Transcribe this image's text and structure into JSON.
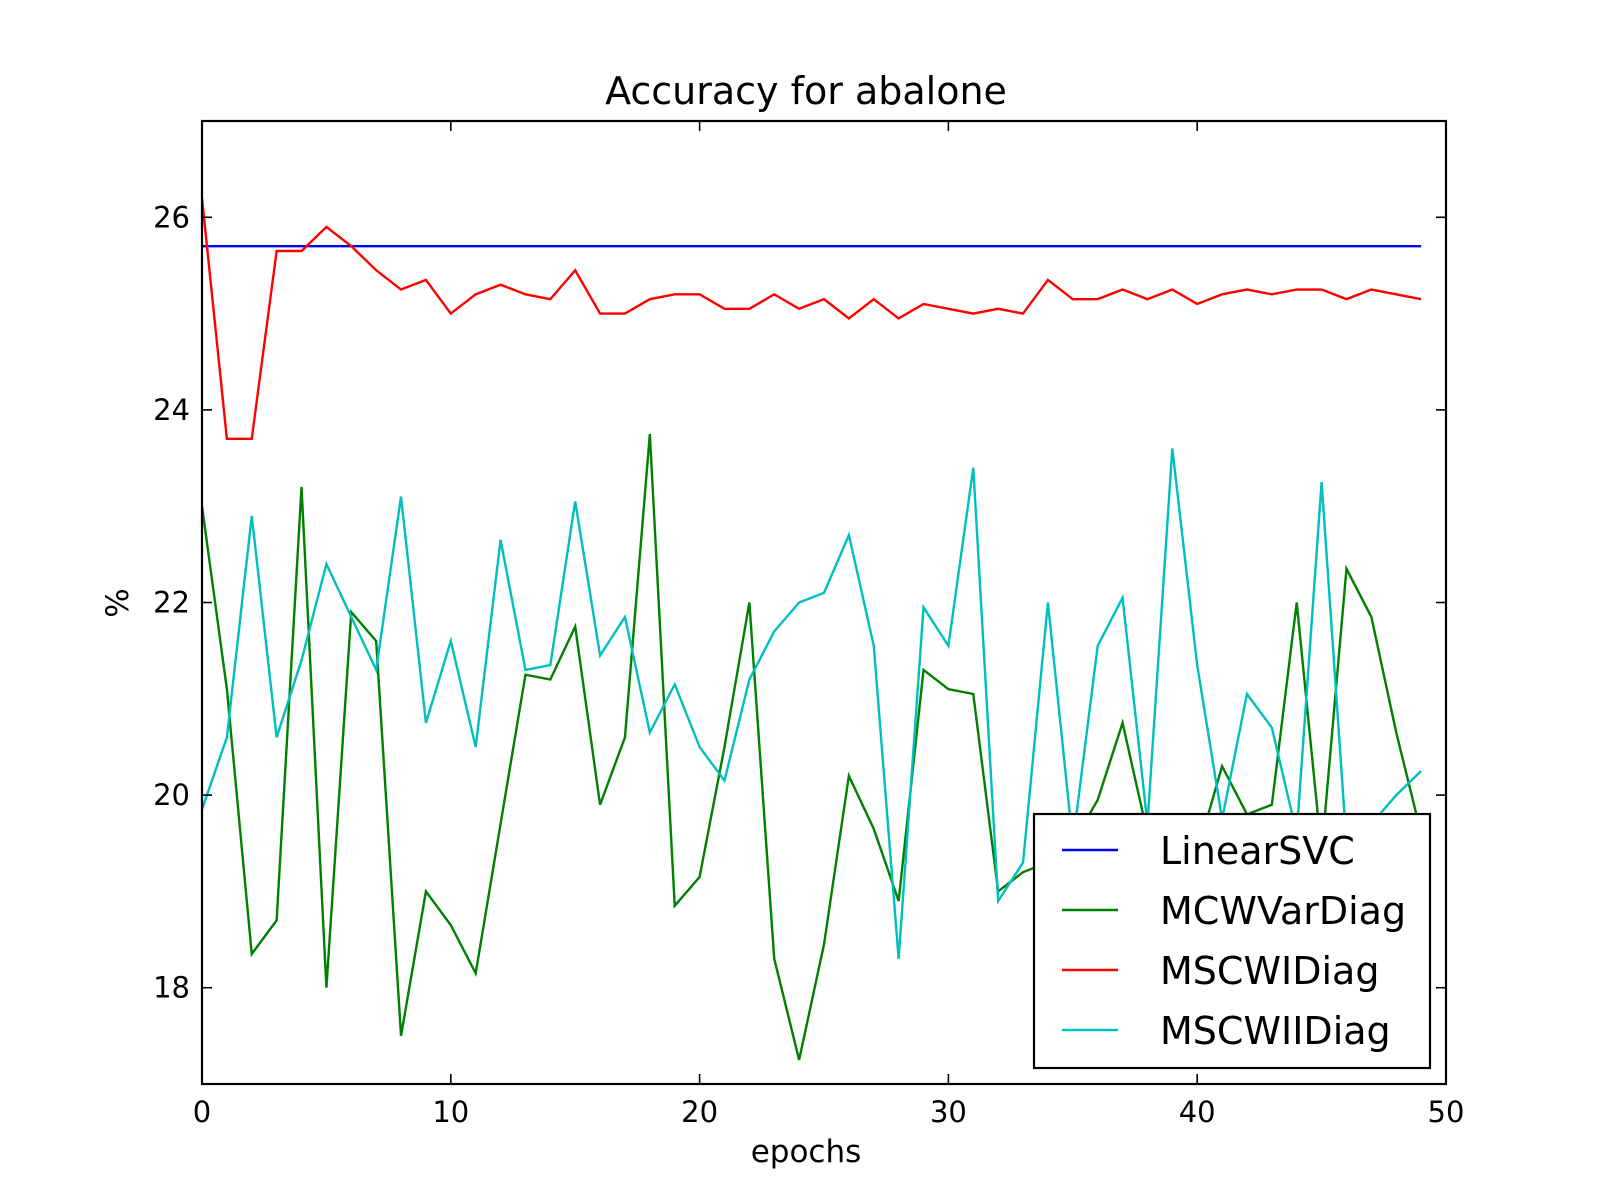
{
  "chart_data": {
    "type": "line",
    "title": "Accuracy for abalone",
    "xlabel": "epochs",
    "ylabel": "%",
    "xlim": [
      0,
      50
    ],
    "ylim": [
      17,
      27
    ],
    "xticks": [
      0,
      10,
      20,
      30,
      40,
      50
    ],
    "xtick_labels": [
      "0",
      "10",
      "20",
      "30",
      "40",
      "50"
    ],
    "yticks": [
      18,
      20,
      22,
      24,
      26
    ],
    "ytick_labels": [
      "18",
      "20",
      "22",
      "24",
      "26"
    ],
    "grid": false,
    "legend_position": "lower-right",
    "x": [
      0,
      1,
      2,
      3,
      4,
      5,
      6,
      7,
      8,
      9,
      10,
      11,
      12,
      13,
      14,
      15,
      16,
      17,
      18,
      19,
      20,
      21,
      22,
      23,
      24,
      25,
      26,
      27,
      28,
      29,
      30,
      31,
      32,
      33,
      34,
      35,
      36,
      37,
      38,
      39,
      40,
      41,
      42,
      43,
      44,
      45,
      46,
      47,
      48,
      49
    ],
    "series": [
      {
        "name": "LinearSVC",
        "color": "#0000ff",
        "values": [
          25.7,
          25.7,
          25.7,
          25.7,
          25.7,
          25.7,
          25.7,
          25.7,
          25.7,
          25.7,
          25.7,
          25.7,
          25.7,
          25.7,
          25.7,
          25.7,
          25.7,
          25.7,
          25.7,
          25.7,
          25.7,
          25.7,
          25.7,
          25.7,
          25.7,
          25.7,
          25.7,
          25.7,
          25.7,
          25.7,
          25.7,
          25.7,
          25.7,
          25.7,
          25.7,
          25.7,
          25.7,
          25.7,
          25.7,
          25.7,
          25.7,
          25.7,
          25.7,
          25.7,
          25.7,
          25.7,
          25.7,
          25.7,
          25.7,
          25.7
        ]
      },
      {
        "name": "MCWVarDiag",
        "color": "#008000",
        "values": [
          23.0,
          21.1,
          18.35,
          18.7,
          23.2,
          18.0,
          21.9,
          21.6,
          17.5,
          19.0,
          18.65,
          18.15,
          19.7,
          21.25,
          21.2,
          21.75,
          19.9,
          20.6,
          23.75,
          18.85,
          19.15,
          20.5,
          22.0,
          18.3,
          17.25,
          18.45,
          20.2,
          19.65,
          18.9,
          21.3,
          21.1,
          21.05,
          19.0,
          19.2,
          19.3,
          19.5,
          19.95,
          20.75,
          19.6,
          19.3,
          19.4,
          20.3,
          19.8,
          19.9,
          22.0,
          19.4,
          22.35,
          21.85,
          20.65,
          19.6
        ]
      },
      {
        "name": "MSCWIDiag",
        "color": "#ff0000",
        "values": [
          26.2,
          23.7,
          23.7,
          25.65,
          25.65,
          25.9,
          25.7,
          25.45,
          25.25,
          25.35,
          25.0,
          25.2,
          25.3,
          25.2,
          25.15,
          25.45,
          25.0,
          25.0,
          25.15,
          25.2,
          25.2,
          25.05,
          25.05,
          25.2,
          25.05,
          25.15,
          24.95,
          25.15,
          24.95,
          25.1,
          25.05,
          25.0,
          25.05,
          25.0,
          25.35,
          25.15,
          25.15,
          25.25,
          25.15,
          25.25,
          25.1,
          25.2,
          25.25,
          25.2,
          25.25,
          25.25,
          25.15,
          25.25,
          25.2,
          25.15
        ]
      },
      {
        "name": "MSCWIIDiag",
        "color": "#00bfbf",
        "values": [
          19.85,
          20.6,
          22.9,
          20.6,
          21.4,
          22.4,
          21.85,
          21.3,
          23.1,
          20.75,
          21.6,
          20.5,
          22.65,
          21.3,
          21.35,
          23.05,
          21.45,
          21.85,
          20.65,
          21.15,
          20.5,
          20.15,
          21.2,
          21.7,
          22.0,
          22.1,
          22.7,
          21.55,
          18.3,
          21.95,
          21.55,
          23.4,
          18.9,
          19.3,
          22.0,
          19.5,
          21.55,
          22.05,
          19.7,
          23.6,
          21.35,
          19.75,
          21.05,
          20.7,
          19.6,
          23.25,
          19.5,
          19.7,
          20.0,
          20.25
        ]
      }
    ]
  }
}
